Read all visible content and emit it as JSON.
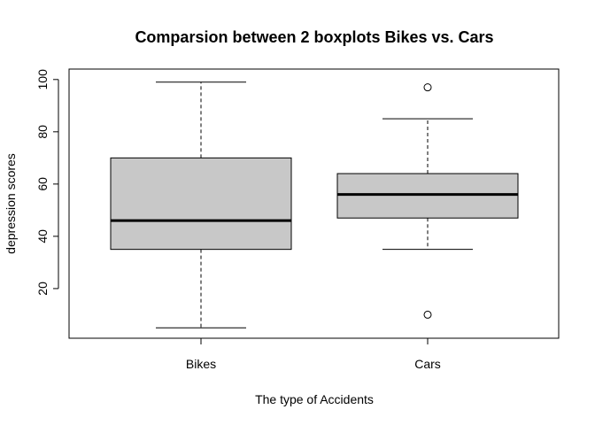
{
  "chart_data": {
    "type": "boxplot",
    "title": "Comparsion between 2 boxplots Bikes vs. Cars",
    "xlabel": "The type of Accidents",
    "ylabel": "depression scores",
    "ylim": [
      1,
      104
    ],
    "y_ticks": [
      20,
      40,
      60,
      80,
      100
    ],
    "categories": [
      "Bikes",
      "Cars"
    ],
    "boxes": [
      {
        "name": "Bikes",
        "whisker_low": 5,
        "q1": 35,
        "median": 46,
        "q3": 70,
        "whisker_high": 99,
        "outliers": []
      },
      {
        "name": "Cars",
        "whisker_low": 35,
        "q1": 47,
        "median": 56,
        "q3": 64,
        "whisker_high": 85,
        "outliers": [
          97,
          10
        ]
      }
    ],
    "box_fill": "#c8c8c8",
    "grid": false
  }
}
